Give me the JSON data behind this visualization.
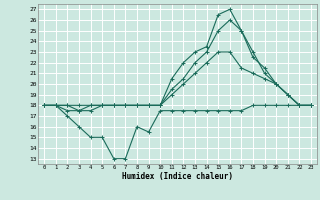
{
  "title": "",
  "xlabel": "Humidex (Indice chaleur)",
  "bg_color": "#cce8e0",
  "grid_color": "#ffffff",
  "line_color": "#1a6b5a",
  "xlim": [
    -0.5,
    23.5
  ],
  "ylim": [
    12.5,
    27.5
  ],
  "xticks": [
    0,
    1,
    2,
    3,
    4,
    5,
    6,
    7,
    8,
    9,
    10,
    11,
    12,
    13,
    14,
    15,
    16,
    17,
    18,
    19,
    20,
    21,
    22,
    23
  ],
  "yticks": [
    13,
    14,
    15,
    16,
    17,
    18,
    19,
    20,
    21,
    22,
    23,
    24,
    25,
    26,
    27
  ],
  "series": [
    {
      "x": [
        0,
        1,
        2,
        3,
        4,
        5,
        6,
        7,
        8,
        9,
        10,
        11,
        12,
        13,
        14,
        15,
        16,
        17,
        18,
        19,
        20,
        21,
        22,
        23
      ],
      "y": [
        18,
        18,
        17,
        16,
        15,
        15,
        13,
        13,
        16,
        15.5,
        17.5,
        17.5,
        17.5,
        17.5,
        17.5,
        17.5,
        17.5,
        17.5,
        18,
        18,
        18,
        18,
        18,
        18
      ]
    },
    {
      "x": [
        0,
        1,
        2,
        3,
        4,
        5,
        6,
        7,
        8,
        9,
        10,
        11,
        12,
        13,
        14,
        15,
        16,
        17,
        18,
        19,
        20,
        21,
        22,
        23
      ],
      "y": [
        18,
        18,
        17.5,
        17.5,
        17.5,
        18,
        18,
        18,
        18,
        18,
        18,
        19,
        20,
        21,
        22,
        23,
        23,
        21.5,
        21,
        20.5,
        20,
        19,
        18,
        18
      ]
    },
    {
      "x": [
        0,
        1,
        2,
        3,
        4,
        5,
        6,
        7,
        8,
        9,
        10,
        11,
        12,
        13,
        14,
        15,
        16,
        17,
        18,
        19,
        20,
        21,
        22,
        23
      ],
      "y": [
        18,
        18,
        18,
        17.5,
        18,
        18,
        18,
        18,
        18,
        18,
        18,
        19.5,
        20.5,
        22,
        23,
        25,
        26,
        25,
        23,
        21,
        20,
        19,
        18,
        18
      ]
    },
    {
      "x": [
        0,
        1,
        2,
        3,
        4,
        5,
        6,
        7,
        8,
        9,
        10,
        11,
        12,
        13,
        14,
        15,
        16,
        17,
        18,
        19,
        20,
        21,
        22,
        23
      ],
      "y": [
        18,
        18,
        18,
        18,
        18,
        18,
        18,
        18,
        18,
        18,
        18,
        20.5,
        22,
        23,
        23.5,
        26.5,
        27,
        25,
        22.5,
        21.5,
        20,
        19,
        18,
        18
      ]
    }
  ]
}
